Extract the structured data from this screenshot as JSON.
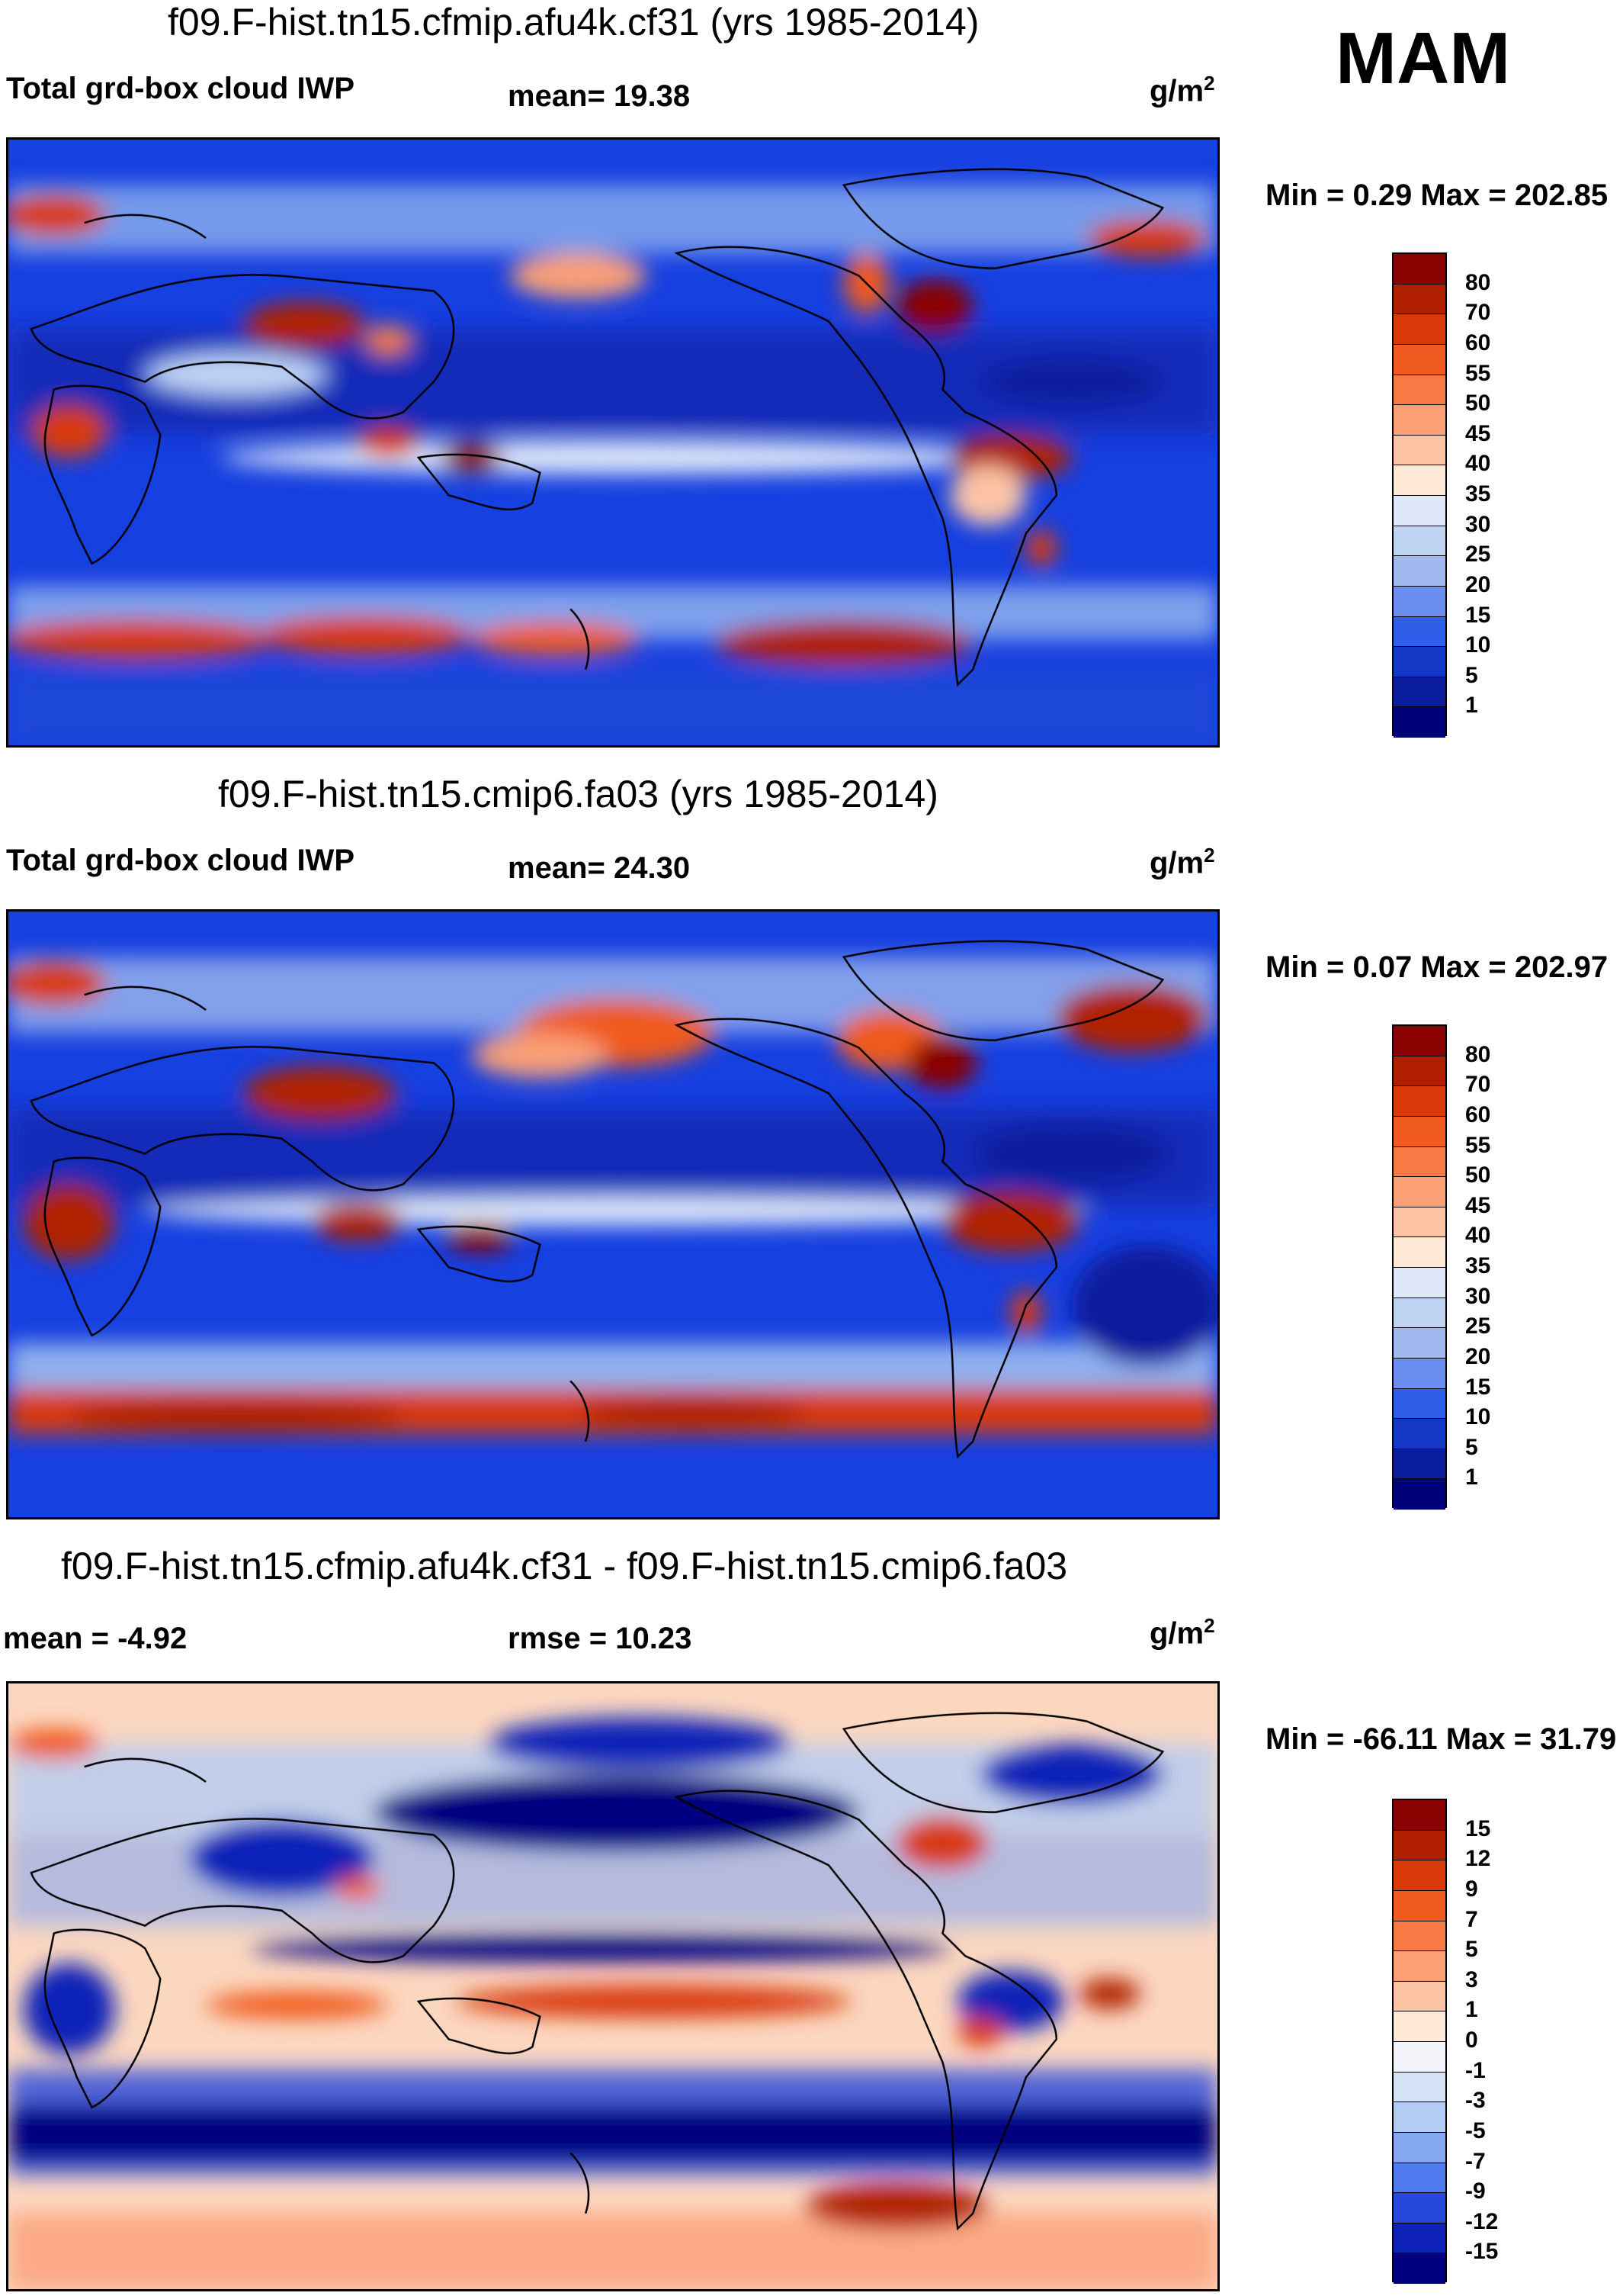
{
  "season": "MAM",
  "panels": [
    {
      "title": "f09.F-hist.tn15.cfmip.afu4k.cf31 (yrs 1985-2014)",
      "left_label": "Total grd-box cloud IWP",
      "stat_label": "mean=  19.38",
      "units": "g/m",
      "units_exp": "2",
      "minmax": "Min =   0.29 Max = 202.85",
      "colorbar": {
        "levels": [
          "80",
          "70",
          "60",
          "55",
          "50",
          "45",
          "40",
          "35",
          "30",
          "25",
          "20",
          "15",
          "10",
          "5",
          "1"
        ],
        "colors": [
          "#8b0000",
          "#b02000",
          "#d83a0a",
          "#f05a1e",
          "#f77a44",
          "#fa9f76",
          "#fcc4a5",
          "#fde8d6",
          "#dfe8f8",
          "#bfd3f3",
          "#9fb8ee",
          "#6b8ff0",
          "#2f5ee8",
          "#1338c6",
          "#0b1f9e",
          "#00007a"
        ]
      }
    },
    {
      "title": "f09.F-hist.tn15.cmip6.fa03 (yrs 1985-2014)",
      "left_label": "Total grd-box cloud IWP",
      "stat_label": "mean=  24.30",
      "units": "g/m",
      "units_exp": "2",
      "minmax": "Min =   0.07 Max = 202.97",
      "colorbar": {
        "levels": [
          "80",
          "70",
          "60",
          "55",
          "50",
          "45",
          "40",
          "35",
          "30",
          "25",
          "20",
          "15",
          "10",
          "5",
          "1"
        ],
        "colors": [
          "#8b0000",
          "#b02000",
          "#d83a0a",
          "#f05a1e",
          "#f77a44",
          "#fa9f76",
          "#fcc4a5",
          "#fde8d6",
          "#dfe8f8",
          "#bfd3f3",
          "#9fb8ee",
          "#6b8ff0",
          "#2f5ee8",
          "#1338c6",
          "#0b1f9e",
          "#00007a"
        ]
      }
    },
    {
      "title": "f09.F-hist.tn15.cfmip.afu4k.cf31 - f09.F-hist.tn15.cmip6.fa03",
      "left_label": "mean =  -4.92",
      "stat_label": "rmse =  10.23",
      "units": "g/m",
      "units_exp": "2",
      "minmax": "Min = -66.11 Max =  31.79",
      "colorbar": {
        "levels": [
          "15",
          "12",
          "9",
          "7",
          "5",
          "3",
          "1",
          "0",
          "-1",
          "-3",
          "-5",
          "-7",
          "-9",
          "-12",
          "-15"
        ],
        "colors": [
          "#8b0000",
          "#b02000",
          "#d83a0a",
          "#f05a1e",
          "#f77a44",
          "#fa9f76",
          "#fcc4a5",
          "#fde8d6",
          "#f2f4fa",
          "#d6e4f8",
          "#b3ccf4",
          "#85a8f0",
          "#4f7bee",
          "#2848dc",
          "#0f22b8",
          "#000080"
        ]
      }
    }
  ]
}
